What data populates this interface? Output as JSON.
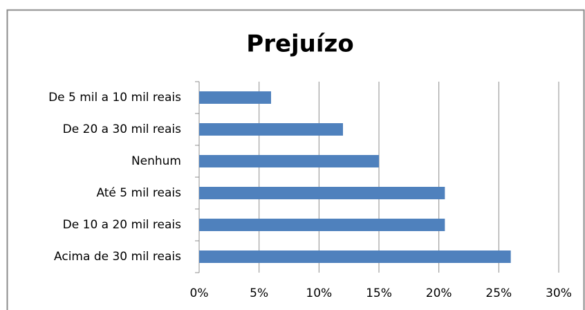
{
  "chart_data": {
    "type": "bar",
    "orientation": "horizontal",
    "title": "Prejuízo",
    "categories": [
      "De 5 mil a 10 mil reais",
      "De 20 a 30 mil reais",
      "Nenhum",
      "Até 5 mil reais",
      "De 10 a 20 mil reais",
      "Acima de 30 mil reais"
    ],
    "values": [
      6,
      12,
      15,
      20.5,
      20.5,
      26
    ],
    "color": "#4f81bd",
    "xlim": [
      0,
      30
    ],
    "xticks": [
      {
        "value": 0,
        "label": "0%"
      },
      {
        "value": 5,
        "label": "5%"
      },
      {
        "value": 10,
        "label": "10%"
      },
      {
        "value": 15,
        "label": "15%"
      },
      {
        "value": 20,
        "label": "20%"
      },
      {
        "value": 25,
        "label": "25%"
      },
      {
        "value": 30,
        "label": "30%"
      }
    ],
    "grid": true
  }
}
